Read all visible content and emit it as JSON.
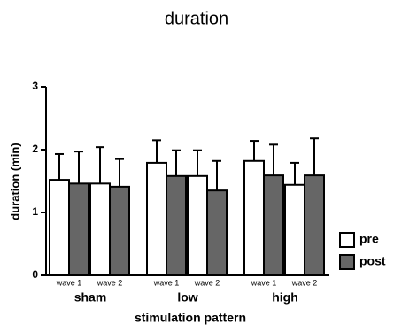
{
  "chart_data": {
    "type": "bar",
    "title": "duration",
    "x_label": "stimulation pattern",
    "y_label": "duration (min)",
    "groups": [
      "sham",
      "low",
      "high"
    ],
    "categories": [
      "wave 1",
      "wave 2",
      "wave 1",
      "wave 2",
      "wave 1",
      "wave 2"
    ],
    "series": [
      {
        "name": "pre",
        "color": "#ffffff",
        "values": [
          1.52,
          1.46,
          1.79,
          1.58,
          1.82,
          1.44
        ],
        "errors": [
          0.41,
          0.58,
          0.36,
          0.41,
          0.32,
          0.35
        ]
      },
      {
        "name": "post",
        "color": "#666666",
        "values": [
          1.46,
          1.41,
          1.58,
          1.35,
          1.59,
          1.59
        ],
        "errors": [
          0.51,
          0.44,
          0.41,
          0.47,
          0.49,
          0.59
        ]
      }
    ],
    "ylim": [
      0,
      3
    ],
    "yticks": [
      0,
      1,
      2,
      3
    ],
    "legend": "right"
  }
}
